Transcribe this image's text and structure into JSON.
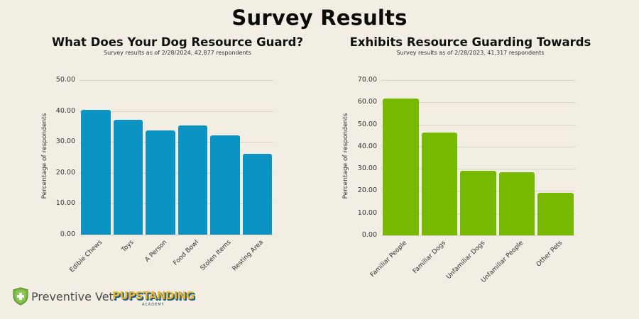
{
  "page": {
    "title": "Survey Results"
  },
  "colors": {
    "background": "#f2eee3",
    "left_bar": "#0b93c4",
    "right_bar": "#76b900",
    "gridline": "#d8d3c6"
  },
  "logos": {
    "preventive_vet": "Preventive Vet",
    "pupstanding": "PUPSTANDING",
    "pupstanding_sub": "ACADEMY"
  },
  "chart_data": [
    {
      "type": "bar",
      "title": "What Does Your Dog Resource Guard?",
      "subtitle": "Survey results as of 2/28/2024, 42,877 respondents",
      "xlabel": "",
      "ylabel": "Percentage of respondents",
      "ylim": [
        0,
        50
      ],
      "yticks": [
        "0.00",
        "10.00",
        "20.00",
        "30.00",
        "40.00",
        "50.00"
      ],
      "grid": true,
      "categories": [
        "Edible Chews",
        "Toys",
        "A Person",
        "Food Bowl",
        "Stolen Items",
        "Resting Area"
      ],
      "values": [
        40.4,
        37.2,
        33.7,
        35.3,
        32.1,
        26.1
      ],
      "color": "#0b93c4"
    },
    {
      "type": "bar",
      "title": "Exhibits Resource Guarding Towards",
      "subtitle": "Survey results as of 2/28/2023, 41,317 respondents",
      "xlabel": "",
      "ylabel": "Percentage of respondents",
      "ylim": [
        0,
        70
      ],
      "yticks": [
        "0.00",
        "10.00",
        "20.00",
        "30.00",
        "40.00",
        "50.00",
        "60.00",
        "70.00"
      ],
      "grid": true,
      "categories": [
        "Familiar People",
        "Familiar Dogs",
        "Unfamiliar Dogs",
        "Unfamiliar People",
        "Other Pets"
      ],
      "values": [
        61.7,
        46.3,
        29.1,
        28.4,
        19.2
      ],
      "color": "#76b900"
    }
  ]
}
